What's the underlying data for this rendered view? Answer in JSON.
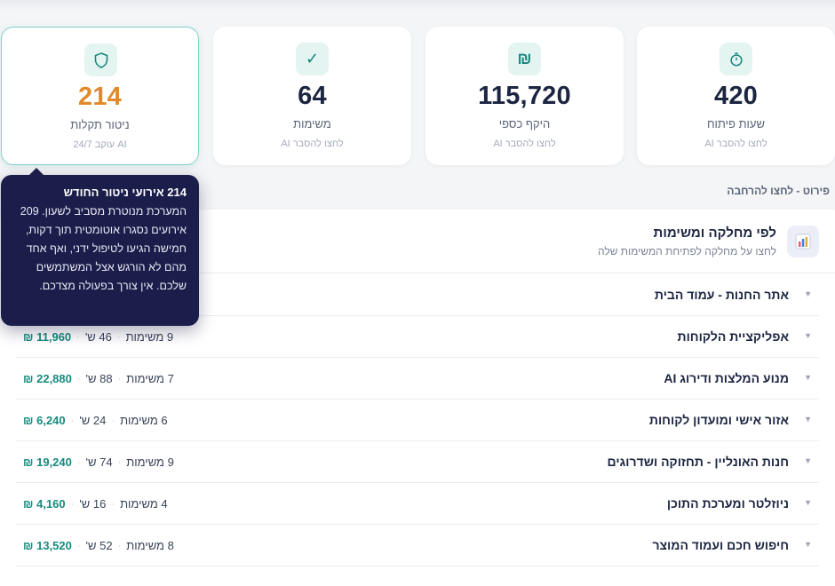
{
  "kpis": [
    {
      "value": "420",
      "label": "שעות פיתוח",
      "sub": "לחצו להסבר AI",
      "icon": "stopwatch-icon"
    },
    {
      "value": "115,720",
      "label": "היקף כספי",
      "sub": "לחצו להסבר AI",
      "icon": "shekel-icon",
      "icon_glyph": "₪"
    },
    {
      "value": "64",
      "label": "משימות",
      "sub": "לחצו להסבר AI",
      "icon": "check-icon",
      "icon_glyph": "✓"
    },
    {
      "value": "214",
      "label": "ניטור תקלות",
      "sub": "AI עוקב 24/7",
      "icon": "shield-icon"
    }
  ],
  "section_caption": "פירוט - לחצו להרחבה",
  "panel": {
    "title": "לפי מחלקה ומשימות",
    "subtitle": "לחצו על מחלקה לפתיחת המשימות שלה",
    "icon": "bar-chart-icon"
  },
  "departments": [
    {
      "name": "אתר החנות - עמוד הבית",
      "amount": "",
      "hours": "",
      "tasks": ""
    },
    {
      "name": "אפליקציית הלקוחות",
      "amount": "11,960 ₪",
      "hours": "46 ש'",
      "tasks": "9 משימות"
    },
    {
      "name": "מנוע המלצות ודירוג AI",
      "amount": "22,880 ₪",
      "hours": "88 ש'",
      "tasks": "7 משימות"
    },
    {
      "name": "אזור אישי ומועדון לקוחות",
      "amount": "6,240 ₪",
      "hours": "24 ש'",
      "tasks": "6 משימות"
    },
    {
      "name": "חנות האונליין - תחזוקה ושדרוגים",
      "amount": "19,240 ₪",
      "hours": "74 ש'",
      "tasks": "9 משימות"
    },
    {
      "name": "ניוזלטר ומערכת התוכן",
      "amount": "4,160 ₪",
      "hours": "16 ש'",
      "tasks": "4 משימות"
    },
    {
      "name": "חיפוש חכם ועמוד המוצר",
      "amount": "13,520 ₪",
      "hours": "52 ש'",
      "tasks": "8 משימות"
    }
  ],
  "tooltip": {
    "title": "214 אירועי ניטור החודש",
    "body": "המערכת מנוטרת מסביב לשעון. 209 אירועים נסגרו אוטומטית תוך דקות, חמישה הגיעו לטיפול ידני, ואף אחד מהם לא הורגש אצל המשתמשים שלכם. אין צורך בפעולה מצדכם."
  },
  "colors": {
    "accent": "#178a7f",
    "orange": "#e18a2a",
    "navy": "#1b1e4b"
  }
}
